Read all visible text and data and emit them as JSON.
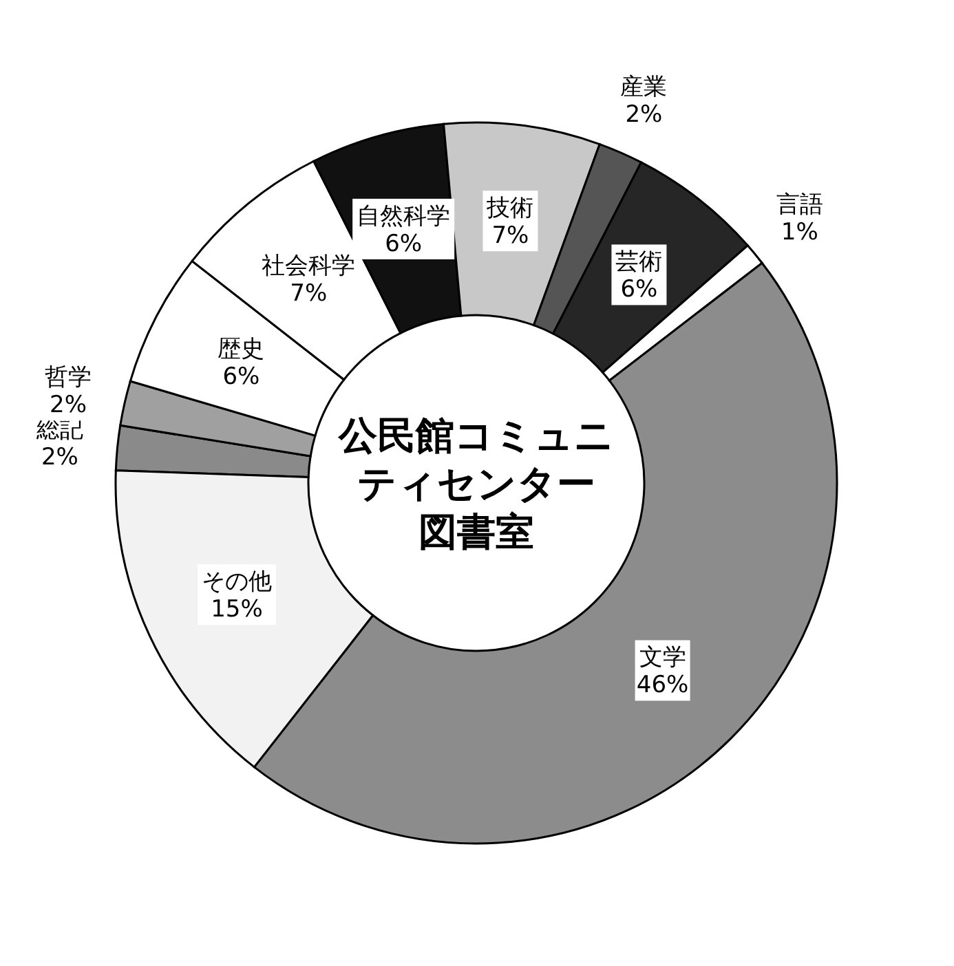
{
  "chart_data": {
    "type": "donut",
    "title": "公民館コミュニティセンター図書室",
    "categories": [
      "総記",
      "哲学",
      "歴史",
      "社会科学",
      "自然科学",
      "技術",
      "産業",
      "芸術",
      "言語",
      "文学",
      "その他"
    ],
    "values": [
      2,
      2,
      6,
      7,
      6,
      7,
      2,
      6,
      1,
      46,
      15
    ],
    "colors": [
      "#8a8a8a",
      "#a0a0a0",
      "#ffffff",
      "#ffffff",
      "#111111",
      "#c8c8c8",
      "#555555",
      "#262626",
      "#ffffff",
      "#8c8c8c",
      "#f2f2f2"
    ],
    "value_labels": [
      "2%",
      "2%",
      "6%",
      "7%",
      "6%",
      "7%",
      "2%",
      "6%",
      "1%",
      "46%",
      "15%"
    ]
  }
}
